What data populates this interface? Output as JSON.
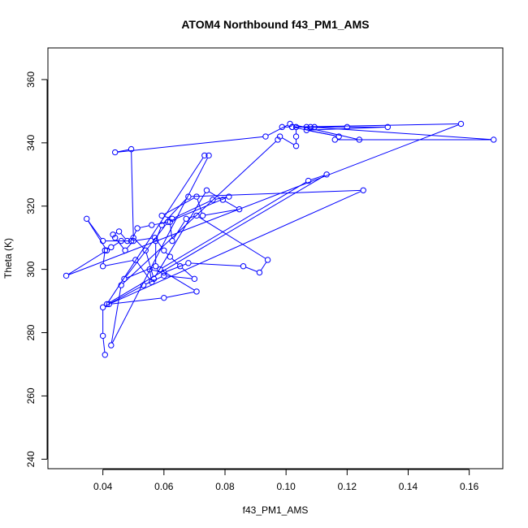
{
  "chart_data": {
    "type": "scatter",
    "title": "ATOM4 Northbound f43_PM1_AMS",
    "xlabel": "f43_PM1_AMS",
    "ylabel": "Theta (K)",
    "xlim": [
      0.022,
      0.171
    ],
    "ylim": [
      237,
      370
    ],
    "xticks": [
      0.04,
      0.06,
      0.08,
      0.1,
      0.12,
      0.14,
      0.16
    ],
    "xtick_labels": [
      "0.04",
      "0.06",
      "0.08",
      "0.10",
      "0.12",
      "0.14",
      "0.16"
    ],
    "yticks": [
      240,
      260,
      280,
      300,
      320,
      340,
      360
    ],
    "ytick_labels": [
      "240",
      "260",
      "280",
      "300",
      "320",
      "340",
      "360"
    ],
    "grid": false,
    "legend": false,
    "color": "#0000ff",
    "lines_and_points": true,
    "series": [
      {
        "points": [
          [
            0.0407,
            273
          ],
          [
            0.04,
            279
          ],
          [
            0.04,
            288
          ],
          [
            0.0533,
            295
          ],
          [
            0.06,
            298
          ],
          [
            0.07,
            297
          ],
          [
            0.0653,
            301
          ],
          [
            0.062,
            304
          ],
          [
            0.06,
            306
          ],
          [
            0.057,
            310
          ],
          [
            0.05,
            309
          ],
          [
            0.0473,
            306
          ],
          [
            0.044,
            310
          ],
          [
            0.0433,
            311
          ],
          [
            0.0453,
            312
          ],
          [
            0.048,
            309
          ],
          [
            0.046,
            309
          ],
          [
            0.0427,
            307
          ],
          [
            0.0407,
            306
          ],
          [
            0.04,
            301
          ],
          [
            0.0507,
            303
          ],
          [
            0.056,
            296
          ],
          [
            0.0553,
            300
          ],
          [
            0.06,
            299
          ],
          [
            0.068,
            302
          ],
          [
            0.086,
            301
          ],
          [
            0.0913,
            299
          ],
          [
            0.094,
            303
          ],
          [
            0.0707,
            317
          ],
          [
            0.0673,
            316
          ],
          [
            0.0627,
            309
          ],
          [
            0.062,
            315
          ],
          [
            0.056,
            314
          ],
          [
            0.0513,
            313
          ],
          [
            0.0493,
            309
          ],
          [
            0.04,
            309
          ],
          [
            0.0347,
            316
          ],
          [
            0.0413,
            306
          ],
          [
            0.028,
            298
          ],
          [
            0.1573,
            346
          ],
          [
            0.102,
            345
          ],
          [
            0.108,
            345
          ],
          [
            0.168,
            341
          ],
          [
            0.116,
            341
          ],
          [
            0.124,
            341
          ],
          [
            0.1013,
            346
          ],
          [
            0.0933,
            342
          ],
          [
            0.044,
            337
          ],
          [
            0.0493,
            338
          ],
          [
            0.05,
            310
          ],
          [
            0.054,
            306
          ],
          [
            0.0567,
            297
          ],
          [
            0.074,
            325
          ],
          [
            0.0793,
            322
          ],
          [
            0.0847,
            319
          ],
          [
            0.0727,
            317
          ],
          [
            0.0707,
            323
          ],
          [
            0.0593,
            317
          ],
          [
            0.0627,
            316
          ],
          [
            0.076,
            322
          ],
          [
            0.0813,
            323
          ],
          [
            0.0613,
            315
          ],
          [
            0.047,
            297
          ],
          [
            0.0573,
            301
          ],
          [
            0.0573,
            309
          ],
          [
            0.0593,
            314
          ],
          [
            0.068,
            323
          ],
          [
            0.1253,
            325
          ],
          [
            0.042,
            289
          ],
          [
            0.06,
            291
          ],
          [
            0.0707,
            293
          ],
          [
            0.0587,
            300
          ],
          [
            0.1073,
            328
          ],
          [
            0.1133,
            330
          ],
          [
            0.0413,
            289
          ],
          [
            0.0733,
            336
          ],
          [
            0.0747,
            336
          ],
          [
            0.0427,
            276
          ],
          [
            0.046,
            295
          ],
          [
            0.0973,
            341
          ],
          [
            0.098,
            342
          ],
          [
            0.1033,
            339
          ],
          [
            0.1033,
            342
          ],
          [
            0.1033,
            345
          ],
          [
            0.1067,
            345
          ],
          [
            0.1093,
            345
          ],
          [
            0.12,
            345
          ],
          [
            0.1333,
            345
          ],
          [
            0.1067,
            344
          ],
          [
            0.1173,
            342
          ],
          [
            0.102,
            345
          ],
          [
            0.0987,
            345
          ]
        ]
      }
    ]
  }
}
